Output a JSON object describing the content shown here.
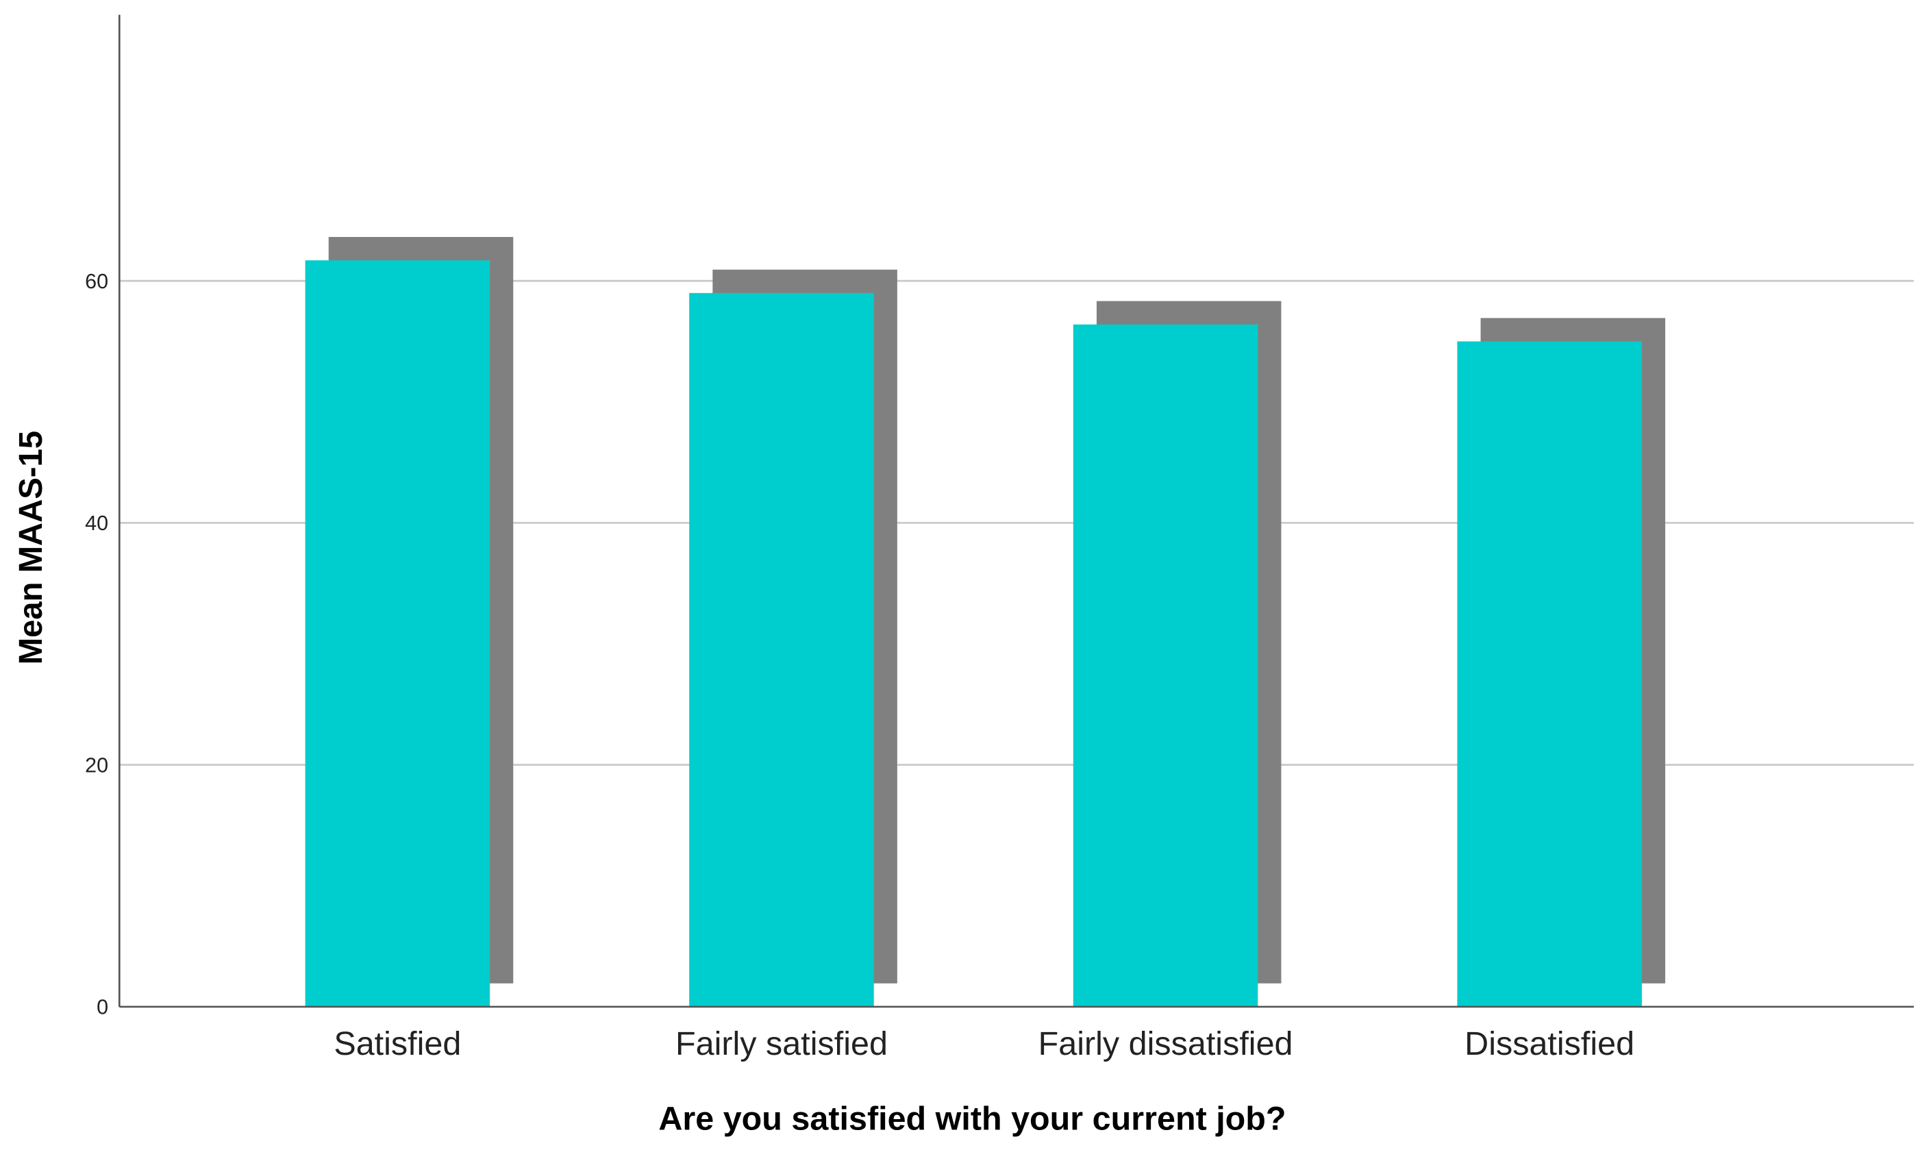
{
  "chart_data": {
    "type": "bar",
    "title": "",
    "xlabel": "Are you satisfied with your current job?",
    "ylabel": "Mean MAAS-15",
    "categories": [
      "Satisfied",
      "Fairly satisfied",
      "Fairly dissatisfied",
      "Dissatisfied"
    ],
    "values": [
      61.7,
      59.0,
      56.4,
      55.0
    ],
    "ylim": [
      0,
      82
    ],
    "yticks": [
      0,
      20,
      40,
      60
    ],
    "grid": true,
    "bar_style": "drop-shadow",
    "colors": {
      "bar": "#00CDCD",
      "shadow": "#808080",
      "grid": "#C8C8C8",
      "axis": "#555555"
    }
  }
}
